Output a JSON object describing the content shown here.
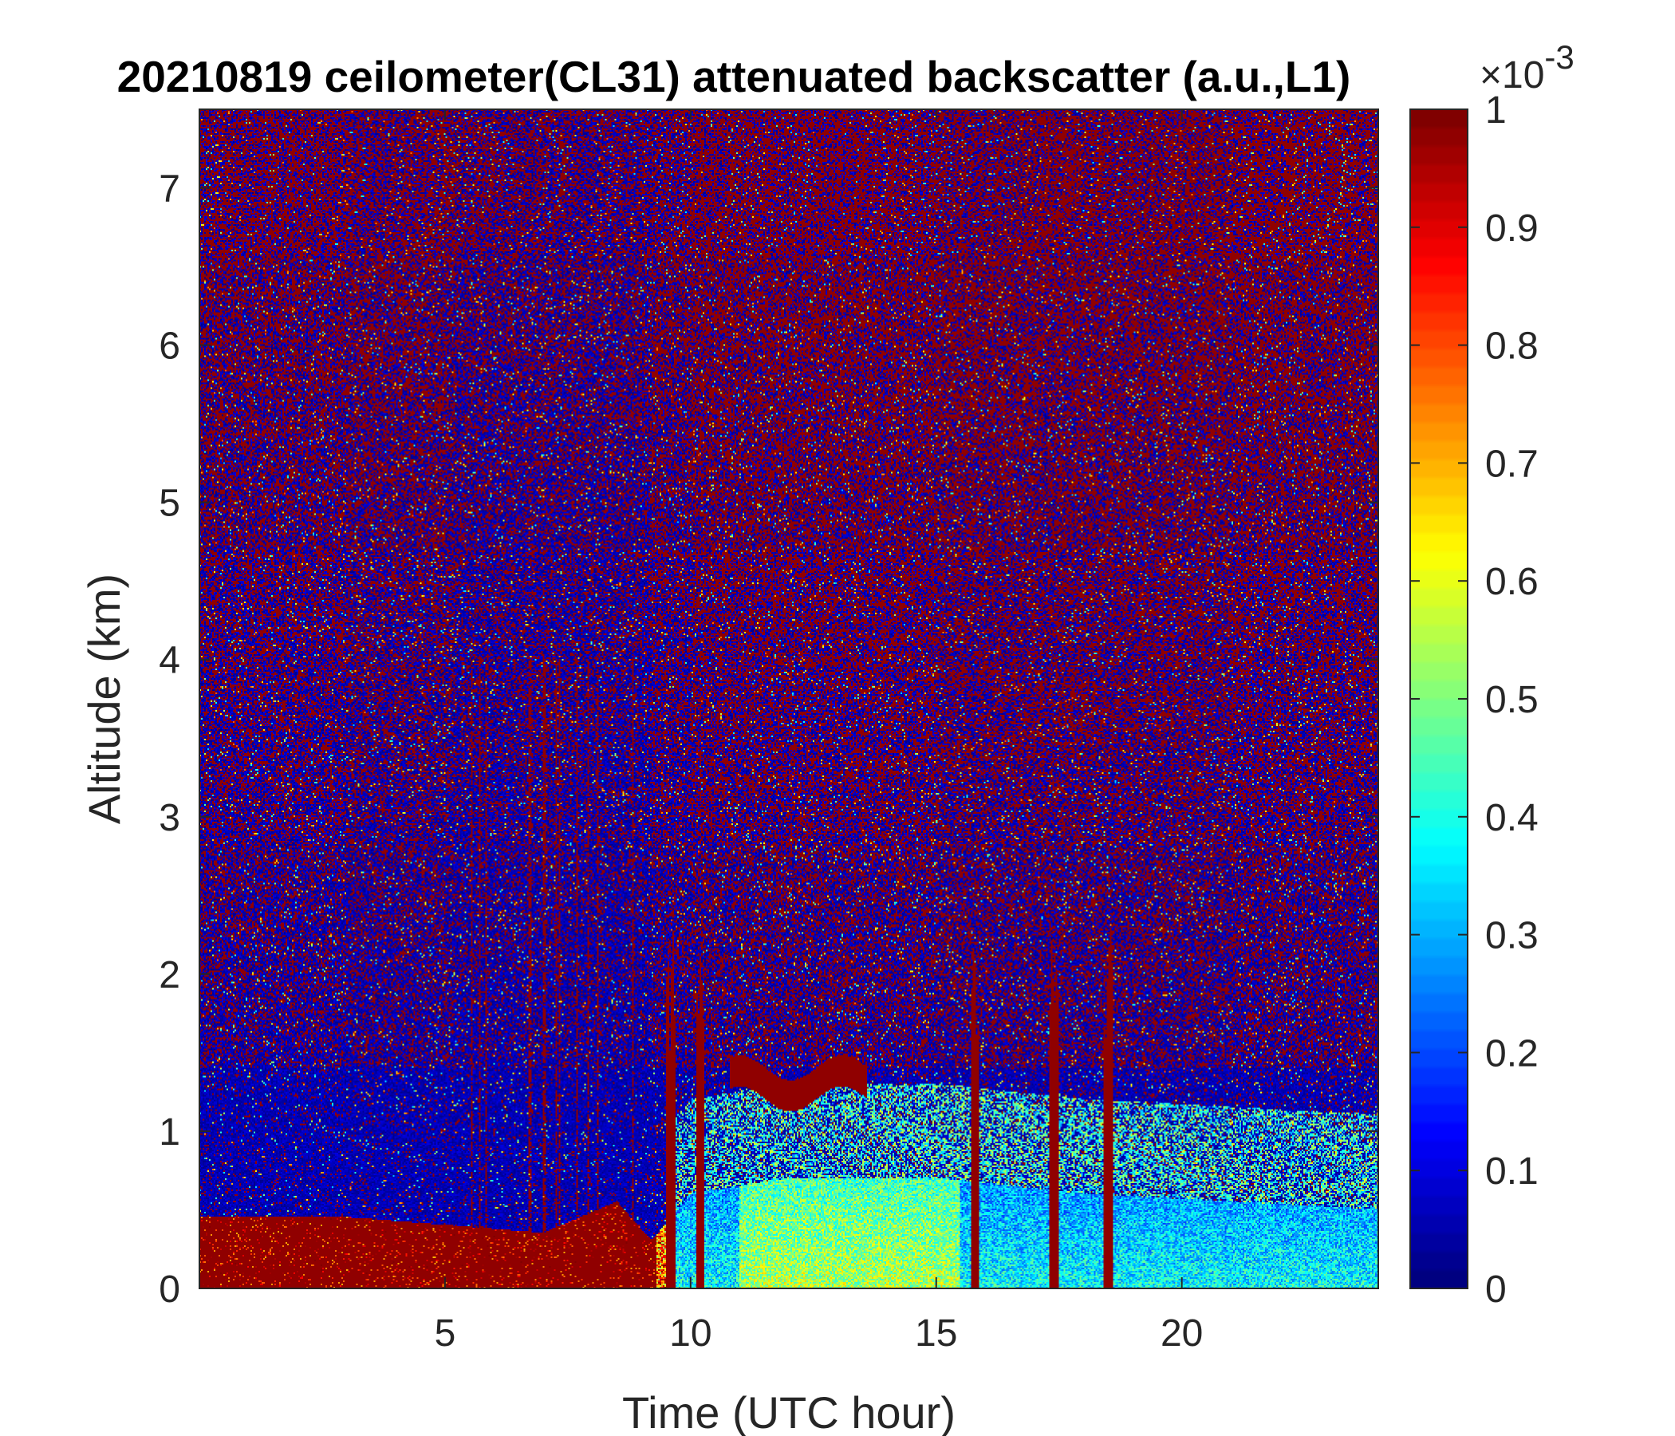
{
  "chart_data": {
    "type": "heatmap",
    "title": "20210819 ceilometer(CL31) attenuated backscatter (a.u.,L1)",
    "xlabel": "Time (UTC hour)",
    "ylabel": "Altitude (km)",
    "xlim": [
      0,
      24
    ],
    "ylim": [
      0,
      7.5
    ],
    "xticks": [
      5,
      10,
      15,
      20
    ],
    "yticks": [
      0,
      1,
      2,
      3,
      4,
      5,
      6,
      7
    ],
    "colorbar": {
      "colormap": "jet",
      "clim": [
        0,
        1
      ],
      "ticks": [
        0,
        0.1,
        0.2,
        0.3,
        0.4,
        0.5,
        0.6,
        0.7,
        0.8,
        0.9,
        1
      ],
      "multiplier_base": "×10",
      "multiplier_exponent": "-3",
      "location": "right"
    },
    "features": {
      "surface_layer_top_km": [
        {
          "t": 0,
          "h": 0.45
        },
        {
          "t": 3,
          "h": 0.45
        },
        {
          "t": 5,
          "h": 0.4
        },
        {
          "t": 7,
          "h": 0.35
        },
        {
          "t": 8.5,
          "h": 0.55
        },
        {
          "t": 9.2,
          "h": 0.3
        },
        {
          "t": 10,
          "h": 0.6
        },
        {
          "t": 12,
          "h": 0.7
        },
        {
          "t": 15,
          "h": 0.7
        },
        {
          "t": 18,
          "h": 0.6
        },
        {
          "t": 24,
          "h": 0.5
        }
      ],
      "elevated_cloud_layer": {
        "t_start": 10.8,
        "t_end": 13.6,
        "h_km": 1.3
      },
      "clear_band_hours": [
        5.2,
        9.2
      ],
      "rain_streak_hours": [
        9.6,
        10.2,
        15.8,
        17.4,
        18.5
      ]
    }
  },
  "colors": {
    "background": "#ffffff",
    "axis": "#262626",
    "noise_low": "#00008f",
    "noise_high": "#800000"
  }
}
